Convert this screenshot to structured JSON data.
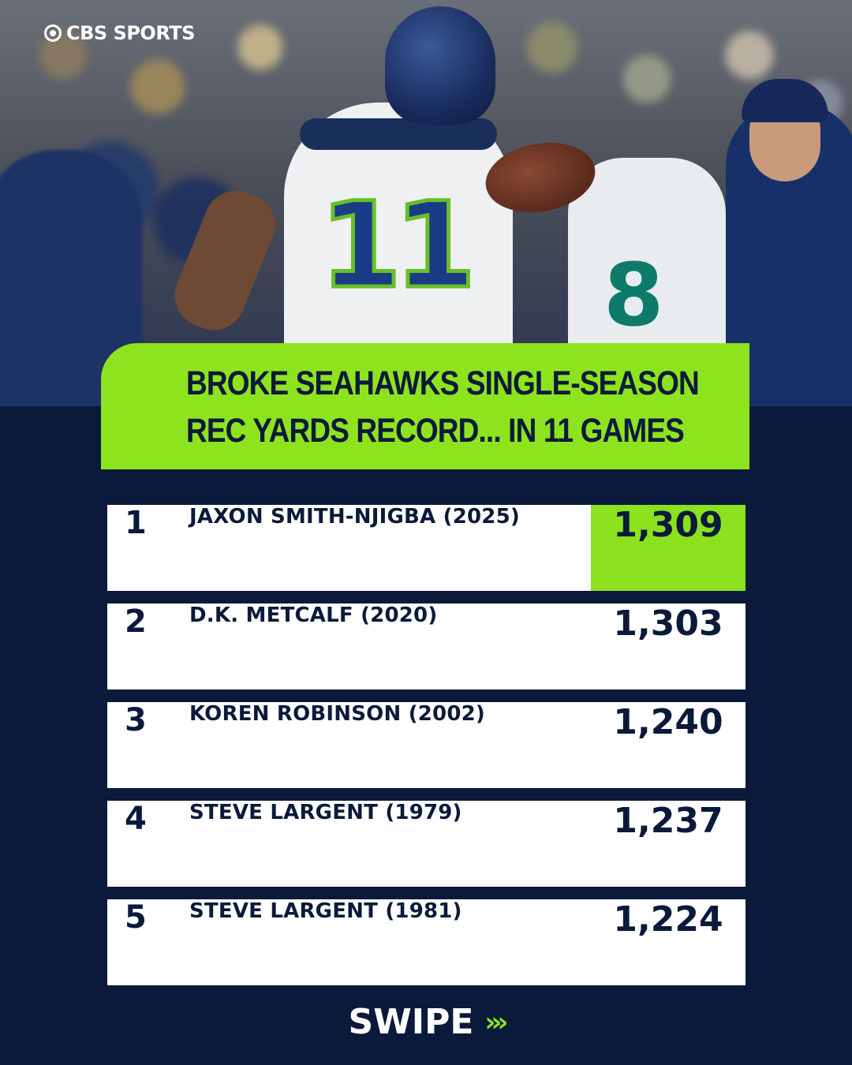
{
  "brand": {
    "logo_text": "CBS SPORTS"
  },
  "hero": {
    "player_number": "11",
    "teammate_number": "8"
  },
  "headline": {
    "line1": "BROKE SEAHAWKS SINGLE-SEASON",
    "line2": "REC YARDS RECORD... IN 11 GAMES"
  },
  "rows": [
    {
      "rank": "1",
      "name": "JAXON SMITH-NJIGBA (2025)",
      "value": "1,309"
    },
    {
      "rank": "2",
      "name": "D.K. METCALF (2020)",
      "value": "1,303"
    },
    {
      "rank": "3",
      "name": "KOREN ROBINSON (2002)",
      "value": "1,240"
    },
    {
      "rank": "4",
      "name": "STEVE LARGENT (1979)",
      "value": "1,237"
    },
    {
      "rank": "5",
      "name": "STEVE LARGENT (1981)",
      "value": "1,224"
    }
  ],
  "swipe": {
    "label": "SWIPE",
    "arrows": "›››"
  },
  "colors": {
    "navy": "#0b1a3a",
    "accent_green": "#8be11e",
    "white": "#ffffff"
  }
}
